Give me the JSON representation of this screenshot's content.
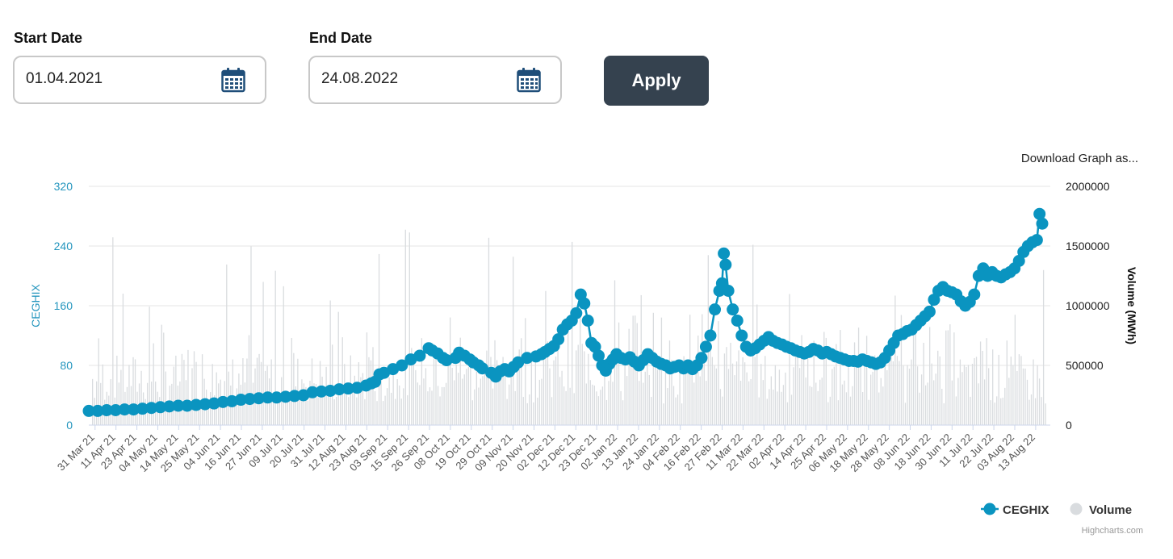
{
  "filters": {
    "start_label": "Start Date",
    "start_value": "01.04.2021",
    "end_label": "End Date",
    "end_value": "24.08.2022",
    "apply_label": "Apply"
  },
  "download_label": "Download Graph as...",
  "credits": "Highcharts.com",
  "icons": {
    "calendar": "calendar-icon"
  },
  "colors": {
    "primary_series": "#0a94c0",
    "volume_bars": "#d9dcdf",
    "apply_button": "#35424f",
    "left_axis": "#2596be"
  },
  "chart_data": {
    "type": "line",
    "ylabel_left": "CEGHIX",
    "ylabel_right": "Volume (MWh)",
    "ylim_left": [
      0,
      320
    ],
    "ylim_right": [
      0,
      2000000
    ],
    "yticks_left": [
      "0",
      "80",
      "160",
      "240",
      "320"
    ],
    "yticks_right": [
      "0",
      "500000",
      "1000000",
      "1500000",
      "2000000"
    ],
    "x_labels": [
      "31 Mar 21",
      "11 Apr 21",
      "23 Apr 21",
      "04 May 21",
      "14 May 21",
      "25 May 21",
      "04 Jun 21",
      "16 Jun 21",
      "27 Jun 21",
      "09 Jul 21",
      "20 Jul 21",
      "31 Jul 21",
      "12 Aug 21",
      "23 Aug 21",
      "03 Sep 21",
      "15 Sep 21",
      "26 Sep 21",
      "08 Oct 21",
      "19 Oct 21",
      "29 Oct 21",
      "09 Nov 21",
      "20 Nov 21",
      "02 Dec 21",
      "12 Dec 21",
      "23 Dec 21",
      "02 Jan 22",
      "13 Jan 22",
      "24 Jan 22",
      "04 Feb 22",
      "16 Feb 22",
      "27 Feb 22",
      "11 Mar 22",
      "22 Mar 22",
      "02 Apr 22",
      "14 Apr 22",
      "25 Apr 22",
      "06 May 22",
      "18 May 22",
      "28 May 22",
      "08 Jun 22",
      "18 Jun 22",
      "30 Jun 22",
      "11 Jul 22",
      "22 Jul 22",
      "03 Aug 22",
      "13 Aug 22"
    ],
    "legend": [
      {
        "name": "CEGHIX",
        "symbol": "circle"
      },
      {
        "name": "Volume",
        "symbol": "circle"
      }
    ],
    "legend_position": "bottom-right",
    "grid": true,
    "series": [
      {
        "name": "CEGHIX",
        "axis": "left",
        "points": [
          [
            0,
            19
          ],
          [
            1,
            19
          ],
          [
            2,
            20
          ],
          [
            3,
            20
          ],
          [
            4,
            21
          ],
          [
            5,
            21
          ],
          [
            6,
            22
          ],
          [
            7,
            23
          ],
          [
            8,
            24
          ],
          [
            9,
            25
          ],
          [
            10,
            26
          ],
          [
            11,
            26
          ],
          [
            12,
            27
          ],
          [
            13,
            28
          ],
          [
            14,
            29
          ],
          [
            15,
            31
          ],
          [
            16,
            32
          ],
          [
            17,
            34
          ],
          [
            18,
            35
          ],
          [
            19,
            36
          ],
          [
            20,
            37
          ],
          [
            21,
            37
          ],
          [
            22,
            38
          ],
          [
            23,
            39
          ],
          [
            24,
            40
          ],
          [
            25,
            44
          ],
          [
            26,
            45
          ],
          [
            27,
            46
          ],
          [
            28,
            48
          ],
          [
            29,
            49
          ],
          [
            30,
            50
          ],
          [
            31,
            53
          ],
          [
            31.6,
            56
          ],
          [
            32,
            58
          ],
          [
            32.5,
            68
          ],
          [
            33,
            70
          ],
          [
            34,
            75
          ],
          [
            35,
            80
          ],
          [
            36,
            88
          ],
          [
            37,
            93
          ],
          [
            38,
            103
          ],
          [
            38.4,
            100
          ],
          [
            39,
            96
          ],
          [
            39.6,
            90
          ],
          [
            40,
            87
          ],
          [
            41,
            90
          ],
          [
            41.4,
            97
          ],
          [
            42,
            93
          ],
          [
            42.6,
            88
          ],
          [
            43,
            84
          ],
          [
            43.6,
            80
          ],
          [
            44,
            76
          ],
          [
            45,
            70
          ],
          [
            45.5,
            65
          ],
          [
            46,
            72
          ],
          [
            46.5,
            75
          ],
          [
            47,
            72
          ],
          [
            47.5,
            78
          ],
          [
            48,
            84
          ],
          [
            49,
            90
          ],
          [
            50,
            92
          ],
          [
            50.6,
            95
          ],
          [
            51,
            98
          ],
          [
            51.5,
            102
          ],
          [
            52,
            106
          ],
          [
            52.5,
            115
          ],
          [
            53,
            128
          ],
          [
            53.5,
            135
          ],
          [
            54,
            140
          ],
          [
            54.5,
            150
          ],
          [
            55,
            175
          ],
          [
            55.4,
            163
          ],
          [
            55.8,
            140
          ],
          [
            56.2,
            110
          ],
          [
            56.6,
            105
          ],
          [
            57,
            93
          ],
          [
            57.4,
            80
          ],
          [
            57.8,
            73
          ],
          [
            58.2,
            82
          ],
          [
            58.6,
            88
          ],
          [
            59,
            95
          ],
          [
            59.5,
            90
          ],
          [
            60,
            88
          ],
          [
            60.5,
            91
          ],
          [
            61,
            85
          ],
          [
            61.5,
            80
          ],
          [
            62,
            87
          ],
          [
            62.5,
            95
          ],
          [
            63,
            90
          ],
          [
            63.5,
            85
          ],
          [
            64,
            82
          ],
          [
            64.5,
            80
          ],
          [
            65,
            76
          ],
          [
            65.5,
            78
          ],
          [
            66,
            80
          ],
          [
            66.5,
            76
          ],
          [
            67,
            80
          ],
          [
            67.5,
            75
          ],
          [
            68,
            80
          ],
          [
            68.5,
            90
          ],
          [
            69,
            105
          ],
          [
            69.5,
            120
          ],
          [
            70,
            155
          ],
          [
            70.5,
            180
          ],
          [
            70.8,
            190
          ],
          [
            71,
            230
          ],
          [
            71.2,
            215
          ],
          [
            71.5,
            180
          ],
          [
            72,
            155
          ],
          [
            72.5,
            140
          ],
          [
            73,
            120
          ],
          [
            73.5,
            105
          ],
          [
            74,
            100
          ],
          [
            74.5,
            103
          ],
          [
            75,
            108
          ],
          [
            75.5,
            113
          ],
          [
            76,
            118
          ],
          [
            76.5,
            113
          ],
          [
            77,
            110
          ],
          [
            77.5,
            108
          ],
          [
            78,
            105
          ],
          [
            78.5,
            103
          ],
          [
            79,
            100
          ],
          [
            79.5,
            98
          ],
          [
            80,
            96
          ],
          [
            80.5,
            98
          ],
          [
            81,
            102
          ],
          [
            81.5,
            100
          ],
          [
            82,
            96
          ],
          [
            82.5,
            98
          ],
          [
            83,
            95
          ],
          [
            83.5,
            92
          ],
          [
            84,
            90
          ],
          [
            84.5,
            88
          ],
          [
            85,
            86
          ],
          [
            85.5,
            86
          ],
          [
            86,
            85
          ],
          [
            86.5,
            88
          ],
          [
            87,
            86
          ],
          [
            87.5,
            84
          ],
          [
            88,
            82
          ],
          [
            88.5,
            84
          ],
          [
            89,
            90
          ],
          [
            89.5,
            100
          ],
          [
            90,
            110
          ],
          [
            90.5,
            120
          ],
          [
            91,
            122
          ],
          [
            91.5,
            126
          ],
          [
            92,
            128
          ],
          [
            92.5,
            134
          ],
          [
            93,
            140
          ],
          [
            93.5,
            146
          ],
          [
            94,
            152
          ],
          [
            94.5,
            168
          ],
          [
            95,
            180
          ],
          [
            95.5,
            185
          ],
          [
            96,
            180
          ],
          [
            96.5,
            178
          ],
          [
            97,
            175
          ],
          [
            97.5,
            166
          ],
          [
            98,
            160
          ],
          [
            98.5,
            165
          ],
          [
            99,
            175
          ],
          [
            99.5,
            200
          ],
          [
            100,
            210
          ],
          [
            100.5,
            200
          ],
          [
            101,
            205
          ],
          [
            101.5,
            200
          ],
          [
            102,
            198
          ],
          [
            102.5,
            202
          ],
          [
            103,
            205
          ],
          [
            103.5,
            210
          ],
          [
            104,
            220
          ],
          [
            104.5,
            232
          ],
          [
            105,
            240
          ],
          [
            105.5,
            245
          ],
          [
            106,
            248
          ],
          [
            106.3,
            283
          ],
          [
            106.6,
            270
          ]
        ]
      },
      {
        "name": "Volume",
        "axis": "right",
        "note": "dense daily volume bars, typically 200000-700000 MWh with spikes up to ~1600000"
      }
    ]
  }
}
